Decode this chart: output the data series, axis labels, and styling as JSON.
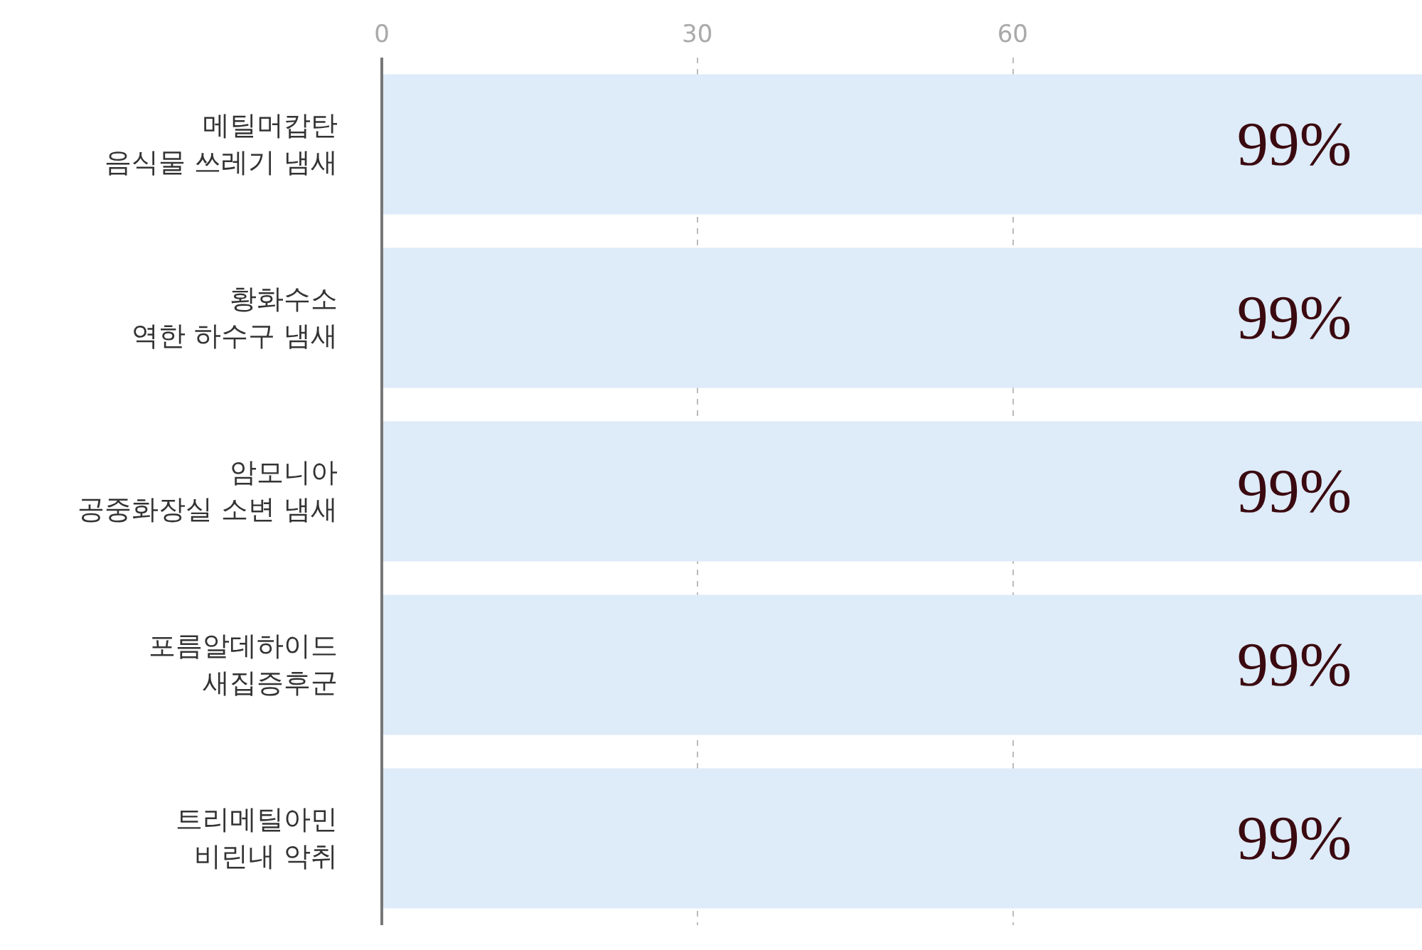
{
  "chart_data": {
    "type": "bar",
    "orientation": "horizontal",
    "categories": [
      "메틸머캅탄\n음식물 쓰레기 냄새",
      "황화수소\n역한 하수구 냄새",
      "암모니아\n공중화장실 소변 냄새",
      "포름알데하이드\n새집증후군",
      "트리메틸아민\n비린내 악취"
    ],
    "values": [
      99,
      99,
      99,
      99,
      99
    ],
    "value_labels": [
      "99%",
      "99%",
      "99%",
      "99%",
      "99%"
    ],
    "color": "#deebf8",
    "xlim": [
      0,
      99
    ],
    "xticks": [
      0,
      30,
      60
    ],
    "grid": "x"
  }
}
